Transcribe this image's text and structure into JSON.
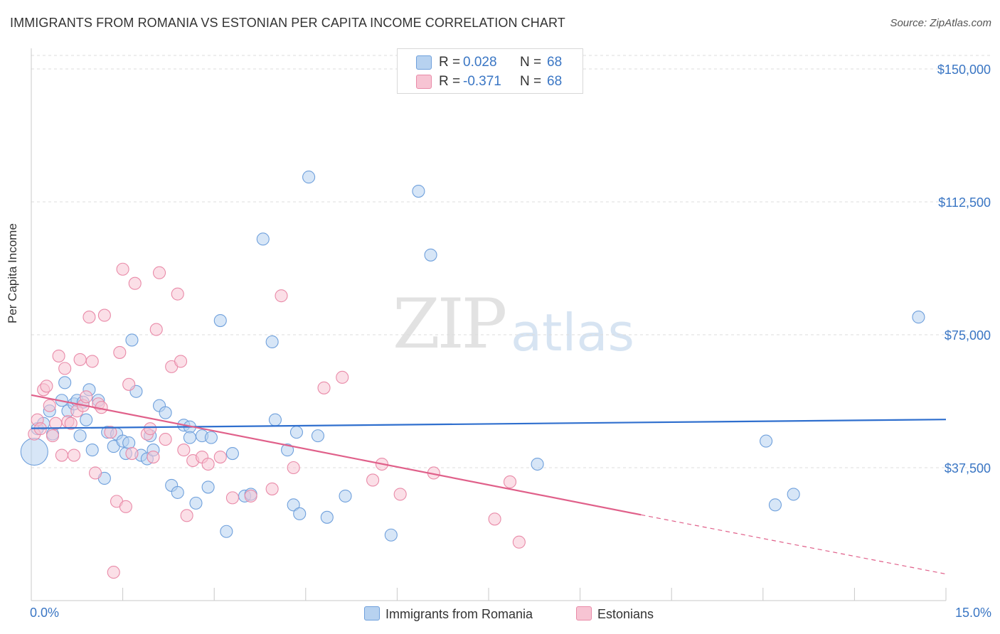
{
  "header": {
    "title": "IMMIGRANTS FROM ROMANIA VS ESTONIAN PER CAPITA INCOME CORRELATION CHART",
    "source": "Source: ZipAtlas.com"
  },
  "watermark": {
    "part1": "ZIP",
    "part2": "atlas"
  },
  "legend_top": {
    "rows": [
      {
        "r_label": "R =",
        "r_value": "0.028",
        "n_label": "N =",
        "n_value": "68",
        "color": "#b7d2f0"
      },
      {
        "r_label": "R =",
        "r_value": "-0.371",
        "n_label": "N =",
        "n_value": "68",
        "color": "#f7c4d3"
      }
    ]
  },
  "legend_bottom": [
    {
      "label": "Immigrants from Romania",
      "color": "#b7d2f0"
    },
    {
      "label": "Estonians",
      "color": "#f7c4d3"
    }
  ],
  "chart_data": {
    "type": "scatter",
    "xlabel": "",
    "ylabel": "Per Capita Income",
    "xlim": [
      0,
      15
    ],
    "ylim": [
      0,
      150000
    ],
    "x_tick_labels": {
      "min": "0.0%",
      "max": "15.0%"
    },
    "y_ticks": [
      {
        "value": 37500,
        "label": "$37,500"
      },
      {
        "value": 75000,
        "label": "$75,000"
      },
      {
        "value": 112500,
        "label": "$112,500"
      },
      {
        "value": 150000,
        "label": "$150,000"
      }
    ],
    "grid": true,
    "legend": "top-center",
    "series": [
      {
        "name": "Immigrants from Romania",
        "color": "#6fa0dc",
        "fill": "#b7d2f0",
        "trend": {
          "x": [
            0,
            15
          ],
          "y": [
            48600,
            51100
          ],
          "color": "#2f6fce"
        },
        "points": [
          [
            0.05,
            42000
          ],
          [
            0.1,
            48500
          ],
          [
            0.2,
            50000
          ],
          [
            0.3,
            53500
          ],
          [
            0.35,
            47000
          ],
          [
            0.5,
            56500
          ],
          [
            0.55,
            61500
          ],
          [
            0.6,
            53500
          ],
          [
            0.7,
            55500
          ],
          [
            0.75,
            56500
          ],
          [
            0.8,
            46500
          ],
          [
            0.85,
            56000
          ],
          [
            0.9,
            51000
          ],
          [
            0.95,
            59500
          ],
          [
            1.0,
            42500
          ],
          [
            1.1,
            56500
          ],
          [
            1.2,
            34500
          ],
          [
            1.25,
            47500
          ],
          [
            1.35,
            43500
          ],
          [
            1.4,
            47000
          ],
          [
            1.5,
            45000
          ],
          [
            1.55,
            41500
          ],
          [
            1.6,
            44500
          ],
          [
            1.65,
            73500
          ],
          [
            1.72,
            59000
          ],
          [
            1.8,
            41000
          ],
          [
            1.9,
            40000
          ],
          [
            1.95,
            46500
          ],
          [
            2.0,
            42500
          ],
          [
            2.1,
            55000
          ],
          [
            2.2,
            53000
          ],
          [
            2.3,
            32500
          ],
          [
            2.4,
            30500
          ],
          [
            2.5,
            49500
          ],
          [
            2.6,
            49000
          ],
          [
            2.6,
            46000
          ],
          [
            2.7,
            27500
          ],
          [
            2.8,
            46500
          ],
          [
            2.9,
            32000
          ],
          [
            2.95,
            46000
          ],
          [
            3.1,
            79000
          ],
          [
            3.2,
            19500
          ],
          [
            3.3,
            41500
          ],
          [
            3.5,
            29500
          ],
          [
            3.6,
            30000
          ],
          [
            3.8,
            102000
          ],
          [
            3.95,
            73000
          ],
          [
            4.0,
            51000
          ],
          [
            4.2,
            42500
          ],
          [
            4.3,
            27000
          ],
          [
            4.35,
            47500
          ],
          [
            4.4,
            24500
          ],
          [
            4.55,
            119500
          ],
          [
            4.7,
            46500
          ],
          [
            4.85,
            23500
          ],
          [
            5.15,
            29500
          ],
          [
            5.9,
            18500
          ],
          [
            6.35,
            115500
          ],
          [
            6.55,
            97500
          ],
          [
            8.3,
            38500
          ],
          [
            12.05,
            45000
          ],
          [
            12.2,
            27000
          ],
          [
            12.5,
            30000
          ],
          [
            14.55,
            80000
          ]
        ]
      },
      {
        "name": "Estonians",
        "color": "#e98aa8",
        "fill": "#f7c4d3",
        "trend": {
          "x": [
            0,
            10
          ],
          "y": [
            58000,
            24200
          ],
          "dash_x": [
            10,
            15
          ],
          "dash_y": [
            24200,
            7500
          ],
          "color": "#e0608a"
        },
        "points": [
          [
            0.05,
            47000
          ],
          [
            0.1,
            51000
          ],
          [
            0.15,
            48500
          ],
          [
            0.2,
            59500
          ],
          [
            0.25,
            60500
          ],
          [
            0.3,
            55000
          ],
          [
            0.35,
            46500
          ],
          [
            0.4,
            50000
          ],
          [
            0.45,
            69000
          ],
          [
            0.5,
            41000
          ],
          [
            0.55,
            65500
          ],
          [
            0.6,
            50500
          ],
          [
            0.65,
            50000
          ],
          [
            0.7,
            41000
          ],
          [
            0.75,
            53500
          ],
          [
            0.8,
            68000
          ],
          [
            0.85,
            55000
          ],
          [
            0.9,
            57500
          ],
          [
            0.95,
            80000
          ],
          [
            1.0,
            67500
          ],
          [
            1.05,
            36000
          ],
          [
            1.1,
            55500
          ],
          [
            1.15,
            54500
          ],
          [
            1.2,
            80500
          ],
          [
            1.3,
            47500
          ],
          [
            1.35,
            8000
          ],
          [
            1.4,
            28000
          ],
          [
            1.45,
            70000
          ],
          [
            1.5,
            93500
          ],
          [
            1.55,
            26500
          ],
          [
            1.6,
            61000
          ],
          [
            1.65,
            41500
          ],
          [
            1.7,
            89500
          ],
          [
            1.9,
            47000
          ],
          [
            1.95,
            48500
          ],
          [
            2.0,
            40500
          ],
          [
            2.05,
            76500
          ],
          [
            2.1,
            92500
          ],
          [
            2.2,
            45500
          ],
          [
            2.3,
            66000
          ],
          [
            2.4,
            86500
          ],
          [
            2.45,
            67500
          ],
          [
            2.5,
            42500
          ],
          [
            2.55,
            24000
          ],
          [
            2.65,
            39500
          ],
          [
            2.8,
            40500
          ],
          [
            2.9,
            38500
          ],
          [
            3.1,
            40500
          ],
          [
            3.3,
            29000
          ],
          [
            3.6,
            29500
          ],
          [
            3.95,
            31500
          ],
          [
            4.1,
            86000
          ],
          [
            4.3,
            37500
          ],
          [
            4.8,
            60000
          ],
          [
            5.1,
            63000
          ],
          [
            5.6,
            34000
          ],
          [
            5.75,
            38500
          ],
          [
            6.05,
            30000
          ],
          [
            6.6,
            36000
          ],
          [
            7.6,
            23000
          ],
          [
            7.85,
            33500
          ],
          [
            8.0,
            16500
          ]
        ]
      }
    ]
  }
}
